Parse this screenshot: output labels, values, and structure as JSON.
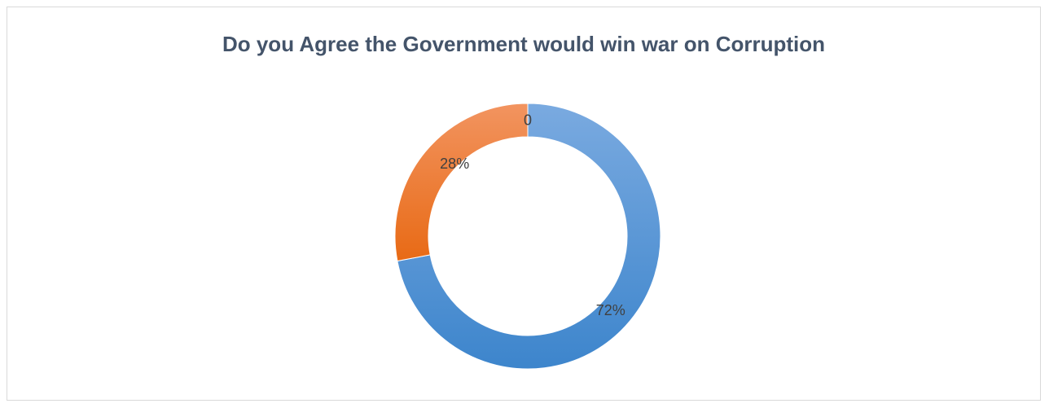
{
  "chart_data": {
    "type": "pie",
    "variant": "doughnut",
    "title": "Do you Agree the Government would win war on Corruption",
    "slices": [
      {
        "label": "",
        "value": 72,
        "display": "72%",
        "color": "#4a8fd6"
      },
      {
        "label": "",
        "value": 28,
        "display": "28%",
        "color": "#ed7d31"
      },
      {
        "label": "",
        "value": 0,
        "display": "0",
        "color": "#a5a5a5"
      }
    ],
    "legend": "none"
  }
}
